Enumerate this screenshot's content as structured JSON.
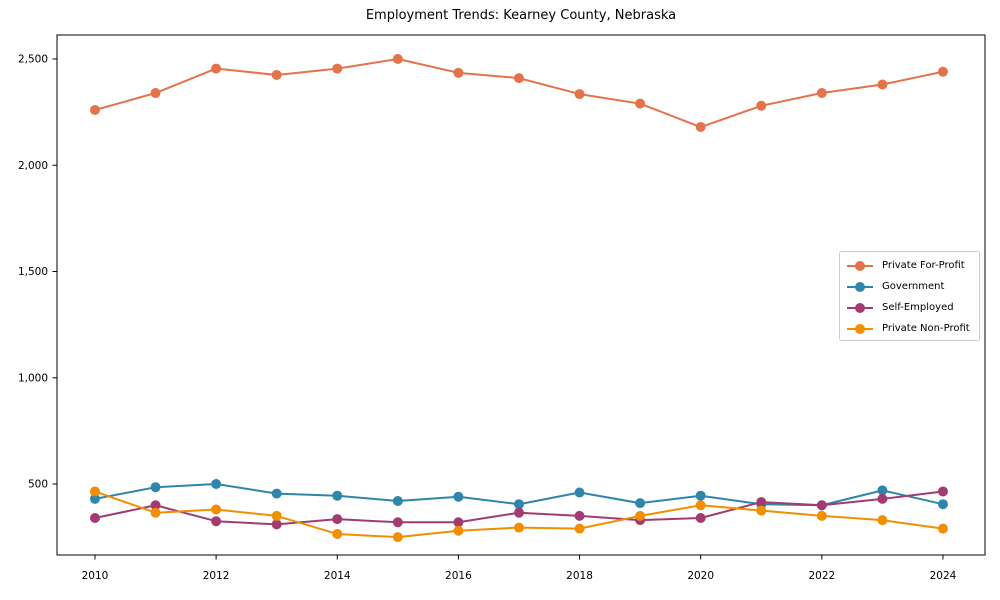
{
  "chart_data": {
    "type": "line",
    "title": "Employment Trends: Kearney County, Nebraska",
    "xlabel": "",
    "ylabel": "",
    "x": [
      2010,
      2011,
      2012,
      2013,
      2014,
      2015,
      2016,
      2017,
      2018,
      2019,
      2020,
      2021,
      2022,
      2023,
      2024
    ],
    "series": [
      {
        "name": "Private For-Profit",
        "color": "#E4724B",
        "values": [
          2260,
          2340,
          2455,
          2425,
          2455,
          2500,
          2435,
          2410,
          2335,
          2290,
          2180,
          2280,
          2340,
          2380,
          2440
        ]
      },
      {
        "name": "Government",
        "color": "#2E86AB",
        "values": [
          430,
          485,
          500,
          455,
          445,
          420,
          440,
          405,
          460,
          410,
          445,
          405,
          400,
          470,
          405
        ]
      },
      {
        "name": "Self-Employed",
        "color": "#A23B72",
        "values": [
          340,
          400,
          325,
          310,
          335,
          320,
          320,
          365,
          350,
          330,
          340,
          415,
          400,
          430,
          465
        ]
      },
      {
        "name": "Private Non-Profit",
        "color": "#F18F01",
        "values": [
          465,
          365,
          380,
          350,
          265,
          250,
          280,
          295,
          290,
          350,
          400,
          375,
          350,
          330,
          290
        ]
      }
    ],
    "x_ticks": [
      2010,
      2012,
      2014,
      2016,
      2018,
      2020,
      2022,
      2024
    ],
    "y_ticks": [
      500,
      1000,
      1500,
      2000,
      2500
    ],
    "xlim": [
      2009.373,
      2024.694
    ],
    "ylim": [
      166,
      2613
    ],
    "grid": false,
    "legend_position": "center right",
    "marker": "circle",
    "axis_color": "#000000"
  }
}
